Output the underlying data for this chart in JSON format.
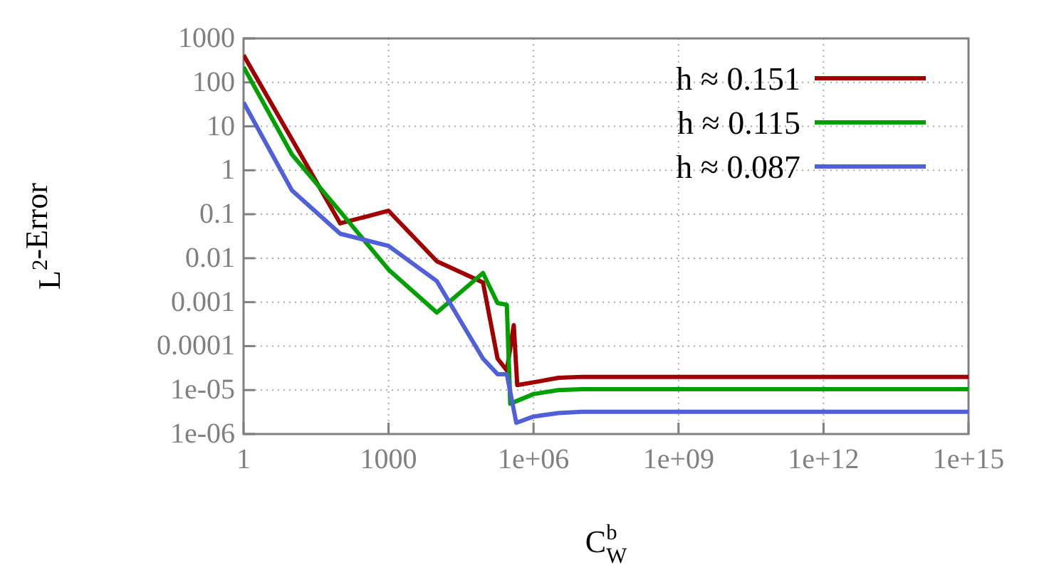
{
  "chart_data": {
    "type": "line",
    "xlabel": "C$^{b}$$_{W}$",
    "ylabel": "L$^{2}$-Error",
    "log": "xy",
    "grid": true,
    "legend": "top right",
    "marker": "none",
    "line_style": "solid",
    "xlim": [
      1,
      1000000000000000.0
    ],
    "xticks": [
      1,
      1000,
      {
        "value": 1000000.0,
        "label": "1e+06"
      },
      {
        "value": 1000000000.0,
        "label": "1e+09"
      },
      {
        "value": 1000000000000.0,
        "label": "1e+12"
      },
      {
        "value": 1000000000000000.0,
        "label": "1e+15"
      }
    ],
    "ylim": [
      1e-06,
      1000
    ],
    "yticks": [
      1000,
      100,
      10,
      1,
      0.1,
      0.01,
      0.001,
      0.0001,
      {
        "value": 1e-05,
        "label": "1e-05"
      },
      {
        "value": 1e-06,
        "label": "1e-06"
      }
    ],
    "series": [
      {
        "name": "h ≈ 0.151",
        "color": "#a00000",
        "x": [
          1,
          100,
          1000,
          10000,
          90000,
          180000,
          280000,
          390000,
          460000,
          1000000,
          3300000,
          10000000,
          1000000000000000.0
        ],
        "values": [
          417,
          0.062,
          0.12,
          0.0085,
          0.0028,
          5.2e-05,
          2.8e-05,
          0.0003,
          1.3e-05,
          1.5e-05,
          1.9e-05,
          2e-05,
          2e-05
        ]
      },
      {
        "name": "h ≈ 0.115",
        "color": "#00a000",
        "x": [
          1,
          10,
          100,
          1000,
          10000,
          90000,
          180000,
          280000,
          330000,
          1000000,
          3300000,
          10000000,
          1000000000000000.0
        ],
        "values": [
          224,
          2.3,
          0.115,
          0.0055,
          0.00058,
          0.0046,
          0.00095,
          0.00087,
          4.9e-06,
          8.1e-06,
          1e-05,
          1.05e-05,
          1.05e-05
        ]
      },
      {
        "name": "h ≈ 0.087",
        "color": "#5060d8",
        "x": [
          1,
          10,
          100,
          1000,
          10000,
          90000,
          180000,
          280000,
          440000,
          1000000,
          3300000,
          10000000,
          1000000000000000.0
        ],
        "values": [
          35,
          0.35,
          0.036,
          0.019,
          0.003,
          5.2e-05,
          2.3e-05,
          2.3e-05,
          1.8e-06,
          2.5e-06,
          3e-06,
          3.2e-06,
          3.2e-06
        ]
      }
    ]
  }
}
